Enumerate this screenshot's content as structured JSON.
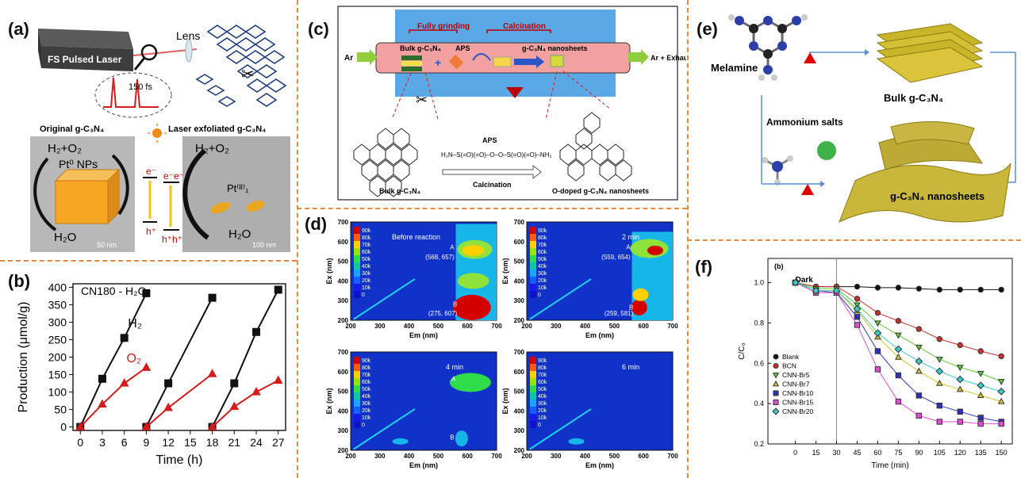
{
  "colors": {
    "divider": "#e8883a",
    "black_series": "#111111",
    "red_series": "#d51b1b"
  },
  "panel_a": {
    "label": "(a)",
    "laser": "FS Pulsed Laser",
    "lens": "Lens",
    "pulse": "150 fs",
    "left_title": "Original g-C₃N₄",
    "right_title": "Laser exfoliated g-C₃N₄",
    "h2o2_left": "H₂+O₂",
    "h2o2_right": "H₂+O₂",
    "h2o_left": "H₂O",
    "h2o_right": "H₂O",
    "pt_np": "Pt⁰ NPs",
    "pt_single": "Pt⁽ᴵᴵ⁾₁",
    "e_left": "e⁻",
    "e_right": "e⁻e⁻",
    "h_left": "h⁺",
    "h_right": "h⁺h⁺",
    "scale_left": "50 nm",
    "scale_right": "100 nm"
  },
  "panel_b": {
    "label": "(b)",
    "chart_data": {
      "type": "line",
      "legend": "CN180 - H₂O",
      "xlabel": "Time (h)",
      "ylabel": "Production (μmol/g)",
      "xticks": [
        0,
        3,
        6,
        9,
        12,
        15,
        18,
        21,
        24,
        27
      ],
      "yticks": [
        0,
        50,
        100,
        150,
        200,
        250,
        300,
        350,
        400
      ],
      "xlim": [
        -1,
        28
      ],
      "ylim": [
        -10,
        410
      ],
      "series": [
        {
          "name": "H₂",
          "marker": "square",
          "color": "#111111",
          "segments": [
            [
              [
                0,
                0
              ],
              [
                3,
                138
              ],
              [
                6,
                255
              ],
              [
                9,
                383
              ]
            ],
            [
              [
                9,
                0
              ],
              [
                12,
                125
              ],
              [
                18,
                370
              ]
            ],
            [
              [
                18,
                0
              ],
              [
                21,
                125
              ],
              [
                24,
                272
              ],
              [
                27,
                393
              ]
            ]
          ]
        },
        {
          "name": "O₂",
          "marker": "triangle",
          "color": "#d51b1b",
          "segments": [
            [
              [
                0,
                0
              ],
              [
                3,
                65
              ],
              [
                6,
                125
              ],
              [
                9,
                170
              ]
            ],
            [
              [
                9,
                0
              ],
              [
                12,
                55
              ],
              [
                18,
                152
              ]
            ],
            [
              [
                18,
                0
              ],
              [
                21,
                58
              ],
              [
                24,
                100
              ],
              [
                27,
                133
              ]
            ]
          ]
        }
      ]
    }
  },
  "panel_c": {
    "label": "(c)",
    "fully_grinding": "Fully grinding",
    "calcination_top": "Calcination",
    "ar": "Ar",
    "ar_exhaust": "Ar + Exhaust gas",
    "bulk": "Bulk g-C₃N₄",
    "aps": "APS",
    "nanosheets": "g-C₃N₄ nanosheets",
    "aps_mid": "APS",
    "aps_formula": "H₂N–S(=O)(=O)–O–O–S(=O)(=O)–NH₂",
    "calcination_mid": "Calcination",
    "bulk_bottom": "Bulk g-C₃N₄",
    "odoped": "O-doped g-C₃N₄ nanosheets"
  },
  "panel_d": {
    "label": "(d)",
    "xlabel": "Em (nm)",
    "ylabel": "Ex (nm)",
    "xticks": [
      200,
      300,
      400,
      500,
      600,
      700
    ],
    "yticks": [
      200,
      300,
      400,
      500,
      600,
      700
    ],
    "colorbar": [
      "90k",
      "80k",
      "70k",
      "60k",
      "50k",
      "40k",
      "30k",
      "20k",
      "10k",
      "0"
    ],
    "maps": [
      {
        "title": "Before reaction",
        "A": "A",
        "A_coord": "(568, 657)",
        "B": "B",
        "B_coord": "(275, 607)"
      },
      {
        "title": "2 min",
        "A": "A",
        "A_coord": "(559, 654)",
        "B": "B",
        "B_coord": "(259, 581)"
      },
      {
        "title": "4 min",
        "A": "A",
        "A_coord": "",
        "B": "B",
        "B_coord": ""
      },
      {
        "title": "6 min",
        "A": "",
        "A_coord": "",
        "B": "",
        "B_coord": ""
      }
    ]
  },
  "panel_e": {
    "label": "(e)",
    "melamine": "Melamine",
    "bulk": "Bulk g-C₃N₄",
    "ammonium": "Ammonium salts",
    "nanosheets": "g-C₃N₄ nanosheets"
  },
  "panel_f": {
    "label": "(f)",
    "sub": "(b)",
    "dark": "Dark",
    "chart_data": {
      "type": "line",
      "xlabel": "Time (min)",
      "ylabel": "C/C₀",
      "xticks": [
        0,
        15,
        30,
        45,
        60,
        75,
        90,
        105,
        120,
        135,
        150
      ],
      "yticks": [
        0.2,
        0.4,
        0.6,
        0.8,
        1.0
      ],
      "xlim": [
        -20,
        158
      ],
      "ylim": [
        0.2,
        1.12
      ],
      "x": [
        0,
        15,
        30,
        45,
        60,
        75,
        90,
        105,
        120,
        135,
        150
      ],
      "series": [
        {
          "name": "Blank",
          "marker": "circle",
          "color": "#111111",
          "values": [
            1.0,
            0.98,
            0.98,
            0.98,
            0.975,
            0.975,
            0.97,
            0.965,
            0.965,
            0.965,
            0.965
          ]
        },
        {
          "name": "BCN",
          "marker": "circle",
          "color": "#c9302c",
          "values": [
            1.0,
            0.98,
            0.98,
            0.92,
            0.85,
            0.81,
            0.77,
            0.72,
            0.69,
            0.66,
            0.635
          ]
        },
        {
          "name": "CNN-Br5",
          "marker": "triangle-down",
          "color": "#5ec93a",
          "values": [
            1.0,
            0.97,
            0.97,
            0.89,
            0.8,
            0.74,
            0.68,
            0.62,
            0.58,
            0.55,
            0.51
          ]
        },
        {
          "name": "CNN-Br7",
          "marker": "triangle-up",
          "color": "#d6c32a",
          "values": [
            1.0,
            0.96,
            0.96,
            0.86,
            0.73,
            0.63,
            0.56,
            0.5,
            0.47,
            0.44,
            0.41
          ]
        },
        {
          "name": "CNN-Br10",
          "marker": "square",
          "color": "#2f31b5",
          "values": [
            1.0,
            0.96,
            0.95,
            0.83,
            0.66,
            0.54,
            0.44,
            0.39,
            0.36,
            0.33,
            0.31
          ]
        },
        {
          "name": "CNN-Br15",
          "marker": "square",
          "color": "#d84fd1",
          "values": [
            1.0,
            0.95,
            0.95,
            0.79,
            0.57,
            0.41,
            0.34,
            0.31,
            0.31,
            0.3,
            0.3
          ]
        },
        {
          "name": "CNN-Br20",
          "marker": "diamond",
          "color": "#3cc9c9",
          "values": [
            1.0,
            0.96,
            0.96,
            0.87,
            0.75,
            0.67,
            0.61,
            0.56,
            0.52,
            0.49,
            0.46
          ]
        }
      ]
    }
  }
}
